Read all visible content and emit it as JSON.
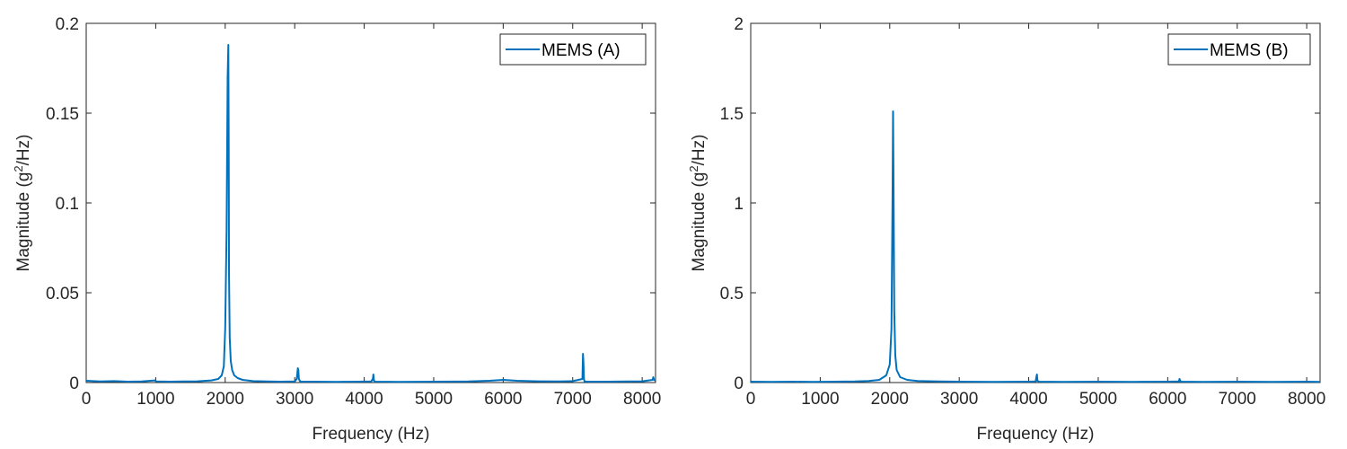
{
  "chart_data": [
    {
      "type": "line",
      "xlabel": "Frequency (Hz)",
      "ylabel_pre": "Magnitude (g",
      "ylabel_sup": "2",
      "ylabel_post": "/Hz)",
      "xlim": [
        0,
        8192
      ],
      "ylim": [
        0,
        0.2
      ],
      "xticks": [
        0,
        1000,
        2000,
        3000,
        4000,
        5000,
        6000,
        7000,
        8000
      ],
      "xtick_labels": [
        "0",
        "1000",
        "2000",
        "3000",
        "4000",
        "5000",
        "6000",
        "7000",
        "8000"
      ],
      "yticks": [
        0,
        0.05,
        0.1,
        0.15,
        0.2
      ],
      "ytick_labels": [
        "0",
        "0.05",
        "0.1",
        "0.15",
        "0.2"
      ],
      "legend_position": "top-right",
      "grid": false,
      "color": "#0072BD",
      "series": [
        {
          "name": "MEMS (A)",
          "x": [
            0,
            200,
            400,
            600,
            800,
            990,
            1010,
            1200,
            1400,
            1600,
            1800,
            1900,
            1950,
            1980,
            2000,
            2020,
            2035,
            2045,
            2050,
            2055,
            2065,
            2080,
            2100,
            2130,
            2180,
            2250,
            2400,
            2600,
            2800,
            3000,
            3030,
            3045,
            3052,
            3060,
            3080,
            3300,
            3600,
            3900,
            4100,
            4125,
            4132,
            4140,
            4160,
            4500,
            5000,
            5500,
            5800,
            6000,
            6200,
            6500,
            6800,
            7000,
            7140,
            7148,
            7155,
            7162,
            7170,
            7200,
            7500,
            7800,
            8000,
            8150,
            8160,
            8170,
            8192
          ],
          "y": [
            0.001,
            0.0006,
            0.0008,
            0.0005,
            0.0006,
            0.0012,
            0.0006,
            0.0005,
            0.0006,
            0.0007,
            0.0012,
            0.002,
            0.004,
            0.009,
            0.03,
            0.085,
            0.17,
            0.188,
            0.14,
            0.06,
            0.025,
            0.012,
            0.007,
            0.004,
            0.0025,
            0.0015,
            0.0008,
            0.0006,
            0.0005,
            0.0006,
            0.002,
            0.008,
            0.007,
            0.002,
            0.0005,
            0.0005,
            0.0004,
            0.0005,
            0.0006,
            0.002,
            0.0045,
            0.001,
            0.0005,
            0.0004,
            0.0005,
            0.0006,
            0.001,
            0.0015,
            0.001,
            0.0007,
            0.0006,
            0.0008,
            0.002,
            0.016,
            0.011,
            0.002,
            0.0006,
            0.0005,
            0.0005,
            0.0006,
            0.0007,
            0.0015,
            0.003,
            0.0015,
            0.001
          ]
        }
      ]
    },
    {
      "type": "line",
      "xlabel": "Frequency (Hz)",
      "ylabel_pre": "Magnitude (g",
      "ylabel_sup": "2",
      "ylabel_post": "/Hz)",
      "xlim": [
        0,
        8192
      ],
      "ylim": [
        0,
        2
      ],
      "xticks": [
        0,
        1000,
        2000,
        3000,
        4000,
        5000,
        6000,
        7000,
        8000
      ],
      "xtick_labels": [
        "0",
        "1000",
        "2000",
        "3000",
        "4000",
        "5000",
        "6000",
        "7000",
        "8000"
      ],
      "yticks": [
        0,
        0.5,
        1,
        1.5,
        2
      ],
      "ytick_labels": [
        "0",
        "0.5",
        "1",
        "1.5",
        "2"
      ],
      "legend_position": "top-right",
      "grid": false,
      "color": "#0072BD",
      "series": [
        {
          "name": "MEMS (B)",
          "x": [
            0,
            300,
            600,
            900,
            1200,
            1500,
            1700,
            1850,
            1950,
            2000,
            2025,
            2040,
            2048,
            2055,
            2065,
            2080,
            2100,
            2150,
            2250,
            2400,
            2700,
            3000,
            3500,
            4000,
            4100,
            4110,
            4118,
            4125,
            4150,
            4500,
            5000,
            5500,
            6000,
            6160,
            6170,
            6178,
            6190,
            6500,
            7000,
            7500,
            8000,
            8192
          ],
          "y": [
            0.005,
            0.004,
            0.005,
            0.004,
            0.005,
            0.006,
            0.009,
            0.015,
            0.04,
            0.1,
            0.3,
            1.0,
            1.51,
            1.1,
            0.4,
            0.15,
            0.07,
            0.03,
            0.015,
            0.009,
            0.006,
            0.005,
            0.004,
            0.005,
            0.006,
            0.03,
            0.045,
            0.01,
            0.005,
            0.004,
            0.005,
            0.004,
            0.005,
            0.006,
            0.02,
            0.012,
            0.005,
            0.004,
            0.005,
            0.004,
            0.005,
            0.004
          ]
        }
      ]
    }
  ]
}
